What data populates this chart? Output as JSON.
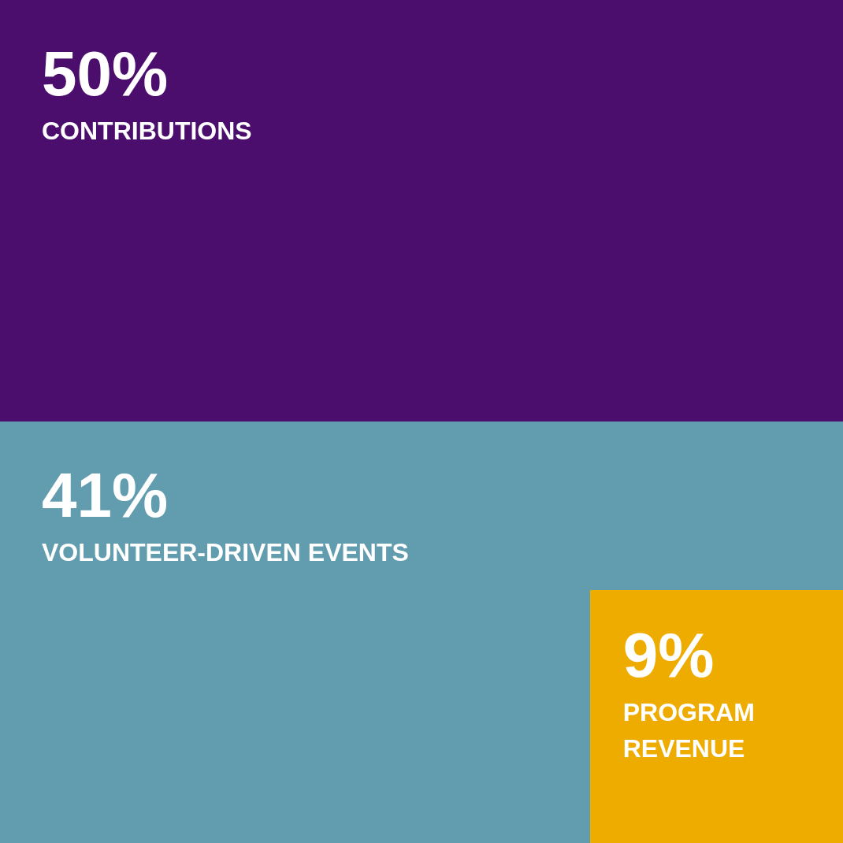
{
  "chart_data": {
    "type": "other",
    "categories": [
      "CONTRIBUTIONS",
      "VOLUNTEER-DRIVEN EVENTS",
      "PROGRAM REVENUE"
    ],
    "values": [
      50,
      41,
      9
    ],
    "value_labels": [
      "50%",
      "41%",
      "9%"
    ],
    "colors": [
      "#4b0e6d",
      "#629daf",
      "#eeac00"
    ]
  }
}
